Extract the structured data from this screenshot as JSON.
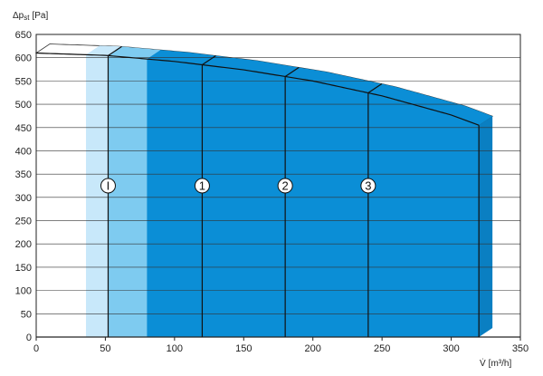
{
  "chart_data": {
    "type": "area",
    "ylabel_main": "Δp",
    "ylabel_sub": "st",
    "ylabel_unit": "[Pa]",
    "xlabel_main": "V̇",
    "xlabel_unit": "[m³/h]",
    "xlim": [
      0,
      350
    ],
    "ylim": [
      0,
      650
    ],
    "x_ticks": [
      "0",
      "50",
      "100",
      "150",
      "200",
      "250",
      "300",
      "350"
    ],
    "y_ticks": [
      "0",
      "50",
      "100",
      "150",
      "200",
      "250",
      "300",
      "350",
      "400",
      "450",
      "500",
      "550",
      "600",
      "650"
    ],
    "grid": true,
    "max_curve": {
      "x": [
        0,
        50,
        100,
        150,
        200,
        250,
        300,
        320
      ],
      "y": [
        610,
        605,
        592,
        574,
        550,
        518,
        477,
        455
      ]
    },
    "regions": [
      {
        "x_from": 36,
        "x_to": 52,
        "color": "#c8e8fa"
      },
      {
        "x_from": 52,
        "x_to": 80,
        "color": "#7ecbf0"
      },
      {
        "x_from": 80,
        "x_to": 320,
        "color": "#0b8ed6"
      }
    ],
    "speed_lines": [
      {
        "label": "I",
        "x": 52
      },
      {
        "label": "1",
        "x": 120
      },
      {
        "label": "2",
        "x": 180
      },
      {
        "label": "3",
        "x": 240
      }
    ],
    "marker_y": 325,
    "colors": {
      "region_light": "#c8e8fa",
      "region_mid": "#7ecbf0",
      "region_dark": "#0b8ed6",
      "region_dark_side": "#0a7fc2",
      "grid": "#333333"
    }
  }
}
